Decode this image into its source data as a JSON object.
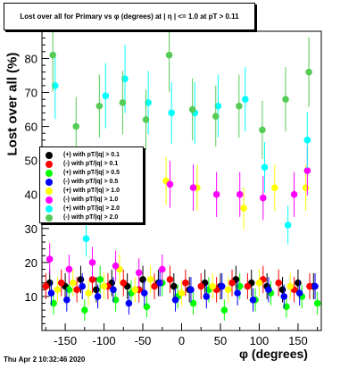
{
  "title": "Lost over all for Primary vs φ (degrees) at | η | <= 1.0 at pT > 0.11",
  "timestamp": "Thu Apr  2 10:32:46 2020",
  "chart_data": {
    "type": "scatter",
    "xlabel": "φ (degrees)",
    "ylabel": "Lost over all (%)",
    "xlim": [
      -180,
      180
    ],
    "ylim": [
      0,
      88
    ],
    "xticks": [
      -150,
      -100,
      -50,
      0,
      50,
      100,
      150
    ],
    "yticks": [
      10,
      20,
      30,
      40,
      50,
      60,
      70,
      80
    ],
    "legend_position": "left",
    "series": [
      {
        "name": "(+) with pT/|q| > 0.1",
        "color": "#000000",
        "x": [
          -170,
          -150,
          -130,
          -110,
          -90,
          -70,
          -50,
          -30,
          -10,
          10,
          30,
          50,
          70,
          90,
          110,
          130,
          150,
          170
        ],
        "y": [
          14,
          13,
          15,
          12,
          14,
          13,
          15,
          14,
          13,
          12,
          14,
          13,
          15,
          14,
          13,
          12,
          14,
          13
        ]
      },
      {
        "name": "(-) with pT/|q| > 0.1",
        "color": "#ff0000",
        "x": [
          -175,
          -155,
          -135,
          -115,
          -95,
          -75,
          -55,
          -35,
          -15,
          5,
          25,
          45,
          65,
          85,
          105,
          125,
          145,
          165
        ],
        "y": [
          13,
          14,
          12,
          15,
          13,
          14,
          12,
          13,
          15,
          14,
          13,
          12,
          14,
          13,
          15,
          14,
          12,
          13
        ]
      },
      {
        "name": "(+) with pT/|q| > 0.5",
        "color": "#00ff00",
        "x": [
          -165,
          -145,
          -125,
          -105,
          -85,
          -65,
          -45,
          -25,
          -5,
          15,
          35,
          55,
          75,
          95,
          115,
          135,
          155,
          175
        ],
        "y": [
          8,
          12,
          6,
          15,
          9,
          11,
          7,
          14,
          10,
          8,
          12,
          6,
          13,
          9,
          11,
          7,
          10,
          8
        ]
      },
      {
        "name": "(-) with pT/|q| > 0.5",
        "color": "#0000ff",
        "x": [
          -168,
          -148,
          -128,
          -108,
          -88,
          -68,
          -48,
          -28,
          -8,
          12,
          32,
          52,
          72,
          92,
          112,
          132,
          152,
          172
        ],
        "y": [
          11,
          9,
          13,
          10,
          12,
          8,
          11,
          14,
          9,
          12,
          10,
          13,
          11,
          9,
          12,
          10,
          11,
          13
        ]
      },
      {
        "name": "(+) with pT/|q| > 1.0",
        "color": "#ffff00",
        "x": [
          -160,
          -140,
          -120,
          -100,
          -80,
          -60,
          -40,
          -20,
          0,
          20,
          40,
          60,
          80,
          100,
          120,
          140,
          160
        ],
        "y": [
          12,
          14,
          11,
          13,
          18,
          12,
          15,
          44,
          11,
          42,
          13,
          12,
          36,
          14,
          42,
          13,
          42
        ]
      },
      {
        "name": "(-) with pT/|q| > 1.0",
        "color": "#ff00ff",
        "x": [
          -170,
          -145,
          -115,
          -85,
          -55,
          -25,
          -15,
          15,
          45,
          75,
          105,
          145,
          162
        ],
        "y": [
          21,
          18,
          20,
          19,
          17,
          18,
          43,
          42,
          40,
          40,
          39,
          40,
          47
        ]
      },
      {
        "name": "(+) with pT/|q| > 2.0",
        "color": "#00ffff",
        "x": [
          -163,
          -123,
          -98,
          -73,
          -43,
          -13,
          17,
          47,
          82,
          107,
          137,
          162
        ],
        "y": [
          72,
          27,
          69,
          74,
          67,
          64,
          64,
          66,
          68,
          48,
          31,
          56
        ]
      },
      {
        "name": "(-) with pT/|q| > 2.0",
        "color": "#55cc55",
        "x": [
          -166,
          -136,
          -106,
          -76,
          -46,
          -16,
          14,
          44,
          74,
          104,
          134,
          164
        ],
        "y": [
          81,
          60,
          66,
          67,
          62,
          81,
          65,
          63,
          66,
          59,
          68,
          76
        ]
      }
    ]
  }
}
